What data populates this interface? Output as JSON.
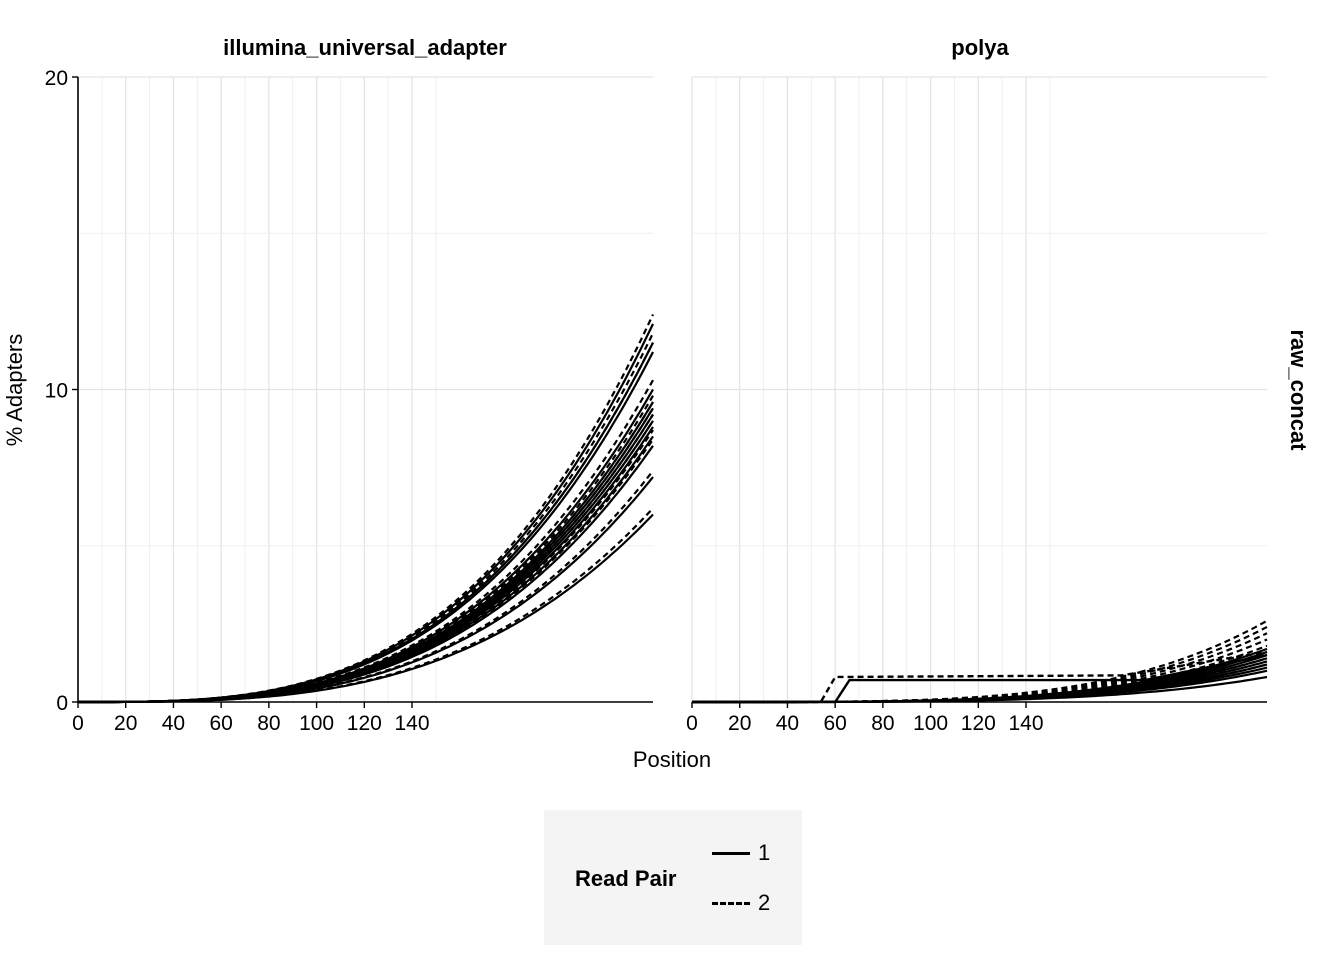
{
  "chart_data": {
    "type": "line",
    "facets": [
      "illumina_universal_adapter",
      "polya"
    ],
    "row_strip": "raw_concat",
    "xlabel": "Position",
    "ylabel": "% Adapters",
    "xticks": [
      0,
      20,
      40,
      60,
      80,
      100,
      120,
      140
    ],
    "yticks": [
      0,
      10,
      20
    ],
    "xlim": [
      0,
      241
    ],
    "ylim": [
      0,
      20
    ],
    "grid": true,
    "legend": {
      "title": "Read Pair",
      "position": "bottom",
      "entries": [
        {
          "label": "1",
          "linetype": "solid"
        },
        {
          "label": "2",
          "linetype": "dashed"
        }
      ]
    },
    "panels": [
      {
        "facet": "illumina_universal_adapter",
        "curve_model": "y = a * (x/241)^p",
        "p": 3.2,
        "read1_endpoints": [
          6.0,
          7.2,
          8.2,
          8.5,
          8.8,
          9.0,
          9.2,
          9.4,
          9.6,
          10.0,
          11.2,
          11.5,
          12.1
        ],
        "read2_endpoints": [
          6.2,
          7.4,
          8.4,
          8.7,
          9.0,
          9.2,
          9.4,
          9.6,
          9.8,
          10.3,
          11.5,
          11.8,
          12.4
        ]
      },
      {
        "facet": "polya",
        "curve_model": "y = a * (x/241)^p",
        "p": 4.0,
        "read1_endpoints": [
          0.8,
          1.0,
          1.1,
          1.2,
          1.3,
          1.4,
          1.5,
          1.6,
          1.7
        ],
        "read2_endpoints": [
          1.2,
          1.4,
          1.6,
          1.8,
          2.0,
          2.2,
          2.4,
          2.6
        ],
        "step_series": [
          {
            "read_pair": "1",
            "points": [
              [
                0,
                0
              ],
              [
                60,
                0
              ],
              [
                66,
                0.7
              ],
              [
                190,
                0.7
              ],
              [
                241,
                1.5
              ]
            ]
          },
          {
            "read_pair": "2",
            "points": [
              [
                0,
                0
              ],
              [
                54,
                0
              ],
              [
                60,
                0.8
              ],
              [
                180,
                0.85
              ],
              [
                241,
                1.6
              ]
            ]
          }
        ]
      }
    ]
  }
}
